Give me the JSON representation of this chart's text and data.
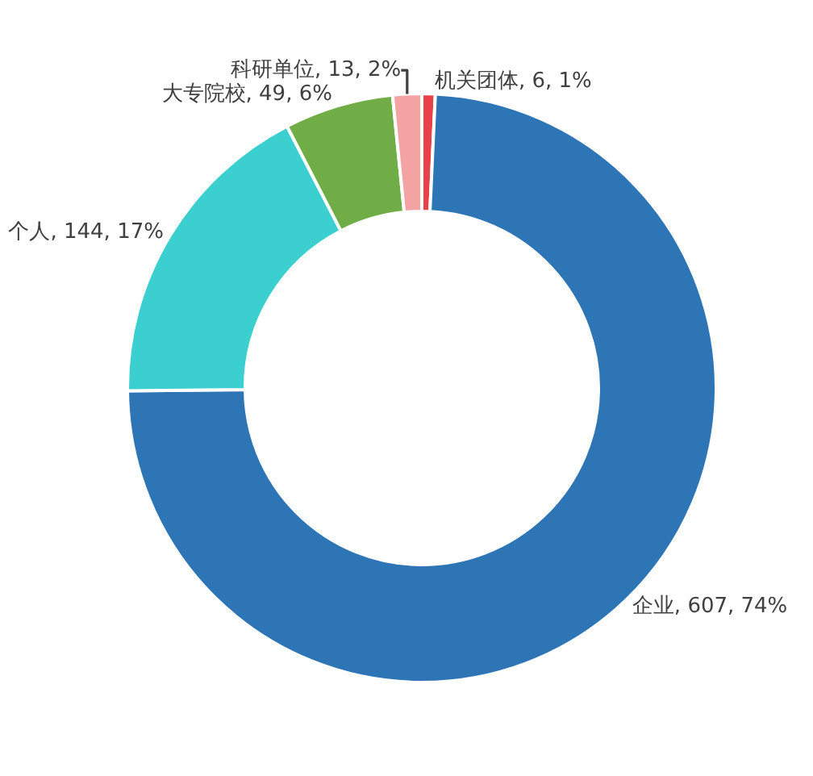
{
  "chart_data": {
    "type": "donut",
    "categories": [
      "机关团体",
      "企业",
      "个人",
      "大专院校",
      "科研单位"
    ],
    "values": [
      6,
      607,
      144,
      49,
      13
    ],
    "value_labels": [
      "6, 1%",
      "607, 74%",
      "144, 17%",
      "49, 6%",
      "13, 2%"
    ],
    "colors": [
      "#e8414a",
      "#2e75b6",
      "#3ccfcf",
      "#70ad47",
      "#f4a3a3"
    ],
    "legend": false
  }
}
